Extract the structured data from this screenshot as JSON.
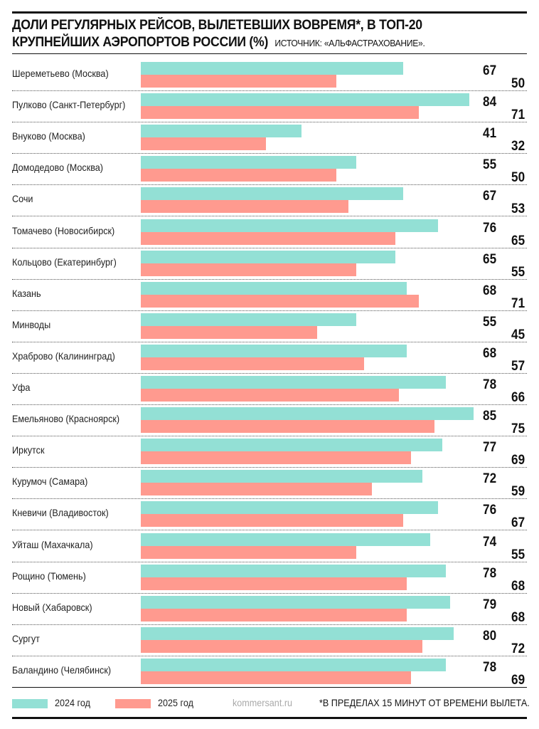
{
  "chart_data": {
    "type": "bar",
    "orientation": "horizontal",
    "title": "ДОЛИ РЕГУЛЯРНЫХ РЕЙСОВ, ВЫЛЕТЕВШИХ ВОВРЕМЯ*, В ТОП-20 КРУПНЕЙШИХ АЭРОПОРТОВ РОССИИ (%)",
    "source": "ИСТОЧНИК: «АЛЬФАСТРАХОВАНИЕ».",
    "categories": [
      "Шереметьево (Москва)",
      "Пулково (Санкт-Петербург)",
      "Внуково (Москва)",
      "Домодедово (Москва)",
      "Сочи",
      "Томачево (Новосибирск)",
      "Кольцово (Екатеринбург)",
      "Казань",
      "Минводы",
      "Храброво (Калининград)",
      "Уфа",
      "Емельяново (Красноярск)",
      "Иркутск",
      "Курумоч (Самара)",
      "Кневичи (Владивосток)",
      "Уйташ (Махачкала)",
      "Рощино (Тюмень)",
      "Новый (Хабаровск)",
      "Сургут",
      "Баландино (Челябинск)"
    ],
    "series": [
      {
        "name": "2024 год",
        "color": "#93e0d5",
        "values": [
          67,
          84,
          41,
          55,
          67,
          76,
          65,
          68,
          55,
          68,
          78,
          85,
          77,
          72,
          76,
          74,
          78,
          79,
          80,
          78
        ]
      },
      {
        "name": "2025 год",
        "color": "#ff9a8f",
        "values": [
          50,
          71,
          32,
          50,
          53,
          65,
          55,
          71,
          45,
          57,
          66,
          75,
          69,
          59,
          67,
          55,
          68,
          68,
          72,
          69
        ]
      }
    ],
    "xlim": [
      0,
      100
    ],
    "grid": false,
    "legend": "bottom-left",
    "watermark": "kommersant.ru",
    "footnote": "*В ПРЕДЕЛАХ 15 МИНУТ ОТ ВРЕМЕНИ ВЫЛЕТА."
  }
}
